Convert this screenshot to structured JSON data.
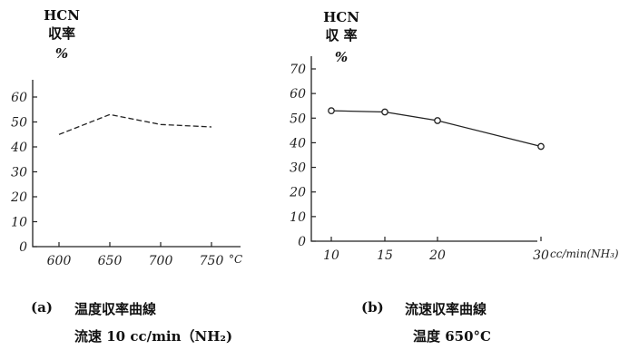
{
  "chart_data": [
    {
      "type": "line",
      "ylabel": [
        "HCN",
        "収率",
        "%"
      ],
      "x_tick_labels": [
        "600",
        "650",
        "700",
        "750"
      ],
      "x_unit": "°C",
      "y_ticks": [
        "0",
        "10",
        "20",
        "30",
        "40",
        "50",
        "60"
      ],
      "xlim": [
        600,
        750
      ],
      "ylim": [
        0,
        60
      ],
      "series": [
        {
          "x": [
            600,
            650,
            700,
            750
          ],
          "y": [
            45,
            53,
            49,
            48
          ]
        }
      ],
      "line_style": "dashed",
      "caption": {
        "label": "(a)",
        "title": "温度収率曲線",
        "subtitle": "流速 10 cc/min（NH₂)"
      }
    },
    {
      "type": "line",
      "ylabel": [
        "HCN",
        "収 率",
        "%"
      ],
      "x_tick_labels": [
        "10",
        "15",
        "20",
        "30"
      ],
      "x_unit": "cc/min(NH₃)",
      "y_ticks": [
        "0",
        "10",
        "20",
        "30",
        "40",
        "50",
        "60",
        "70"
      ],
      "xlim": [
        10,
        30
      ],
      "ylim": [
        0,
        70
      ],
      "series": [
        {
          "x": [
            10,
            15,
            20,
            30
          ],
          "y": [
            53,
            52.5,
            49,
            38.5
          ]
        }
      ],
      "line_style": "solid",
      "caption": {
        "label": "(b)",
        "title": "流速収率曲線",
        "subtitle": "温度 650°C"
      }
    }
  ]
}
